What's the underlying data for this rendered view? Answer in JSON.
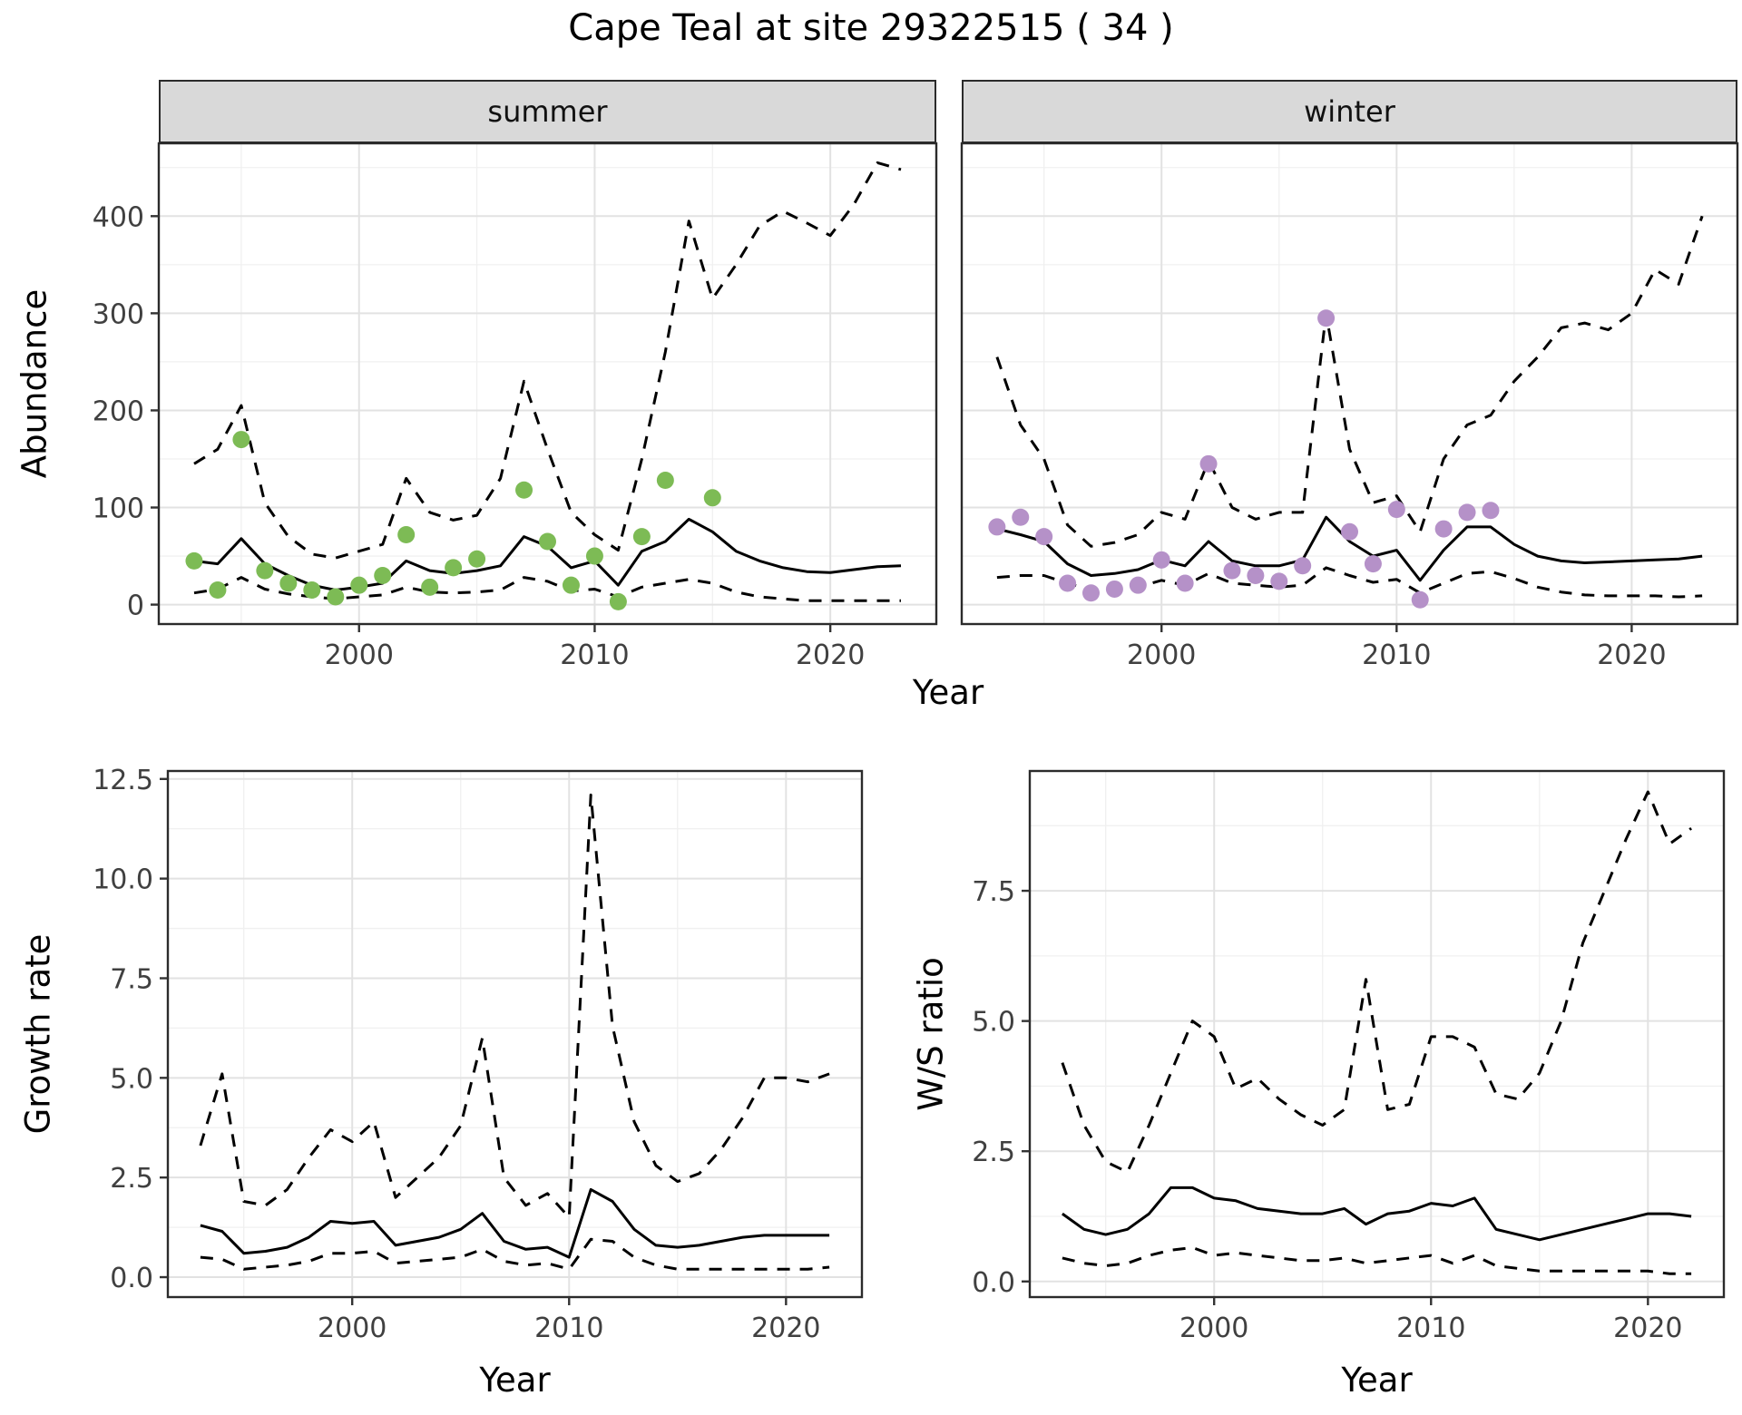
{
  "title": "Cape Teal at site 29322515 ( 34 )",
  "facets": {
    "summer": "summer",
    "winter": "winter"
  },
  "axes": {
    "year": "Year",
    "abundance": "Abundance",
    "growth_rate": "Growth rate",
    "ws_ratio": "W/S ratio"
  },
  "colors": {
    "summer_points": "#7dbb55",
    "winter_points": "#b591c8",
    "line": "#000000",
    "strip_bg": "#d9d9d9",
    "grid_major": "#e2e2e2",
    "grid_minor": "#f0f0f0",
    "panel_border": "#2b2b2b",
    "tick_mark": "#333333",
    "tick_label": "#404040"
  },
  "chart_data": [
    {
      "id": "abundance-summer",
      "type": "line",
      "facet_label": "summer",
      "xlabel": "Year",
      "ylabel": "Abundance",
      "xlim": [
        1991.5,
        2024.5
      ],
      "ylim": [
        -20,
        475
      ],
      "xticks": [
        2000,
        2010,
        2020
      ],
      "xtick_labels": [
        "2000",
        "2010",
        "2020"
      ],
      "yticks": [
        0,
        100,
        200,
        300,
        400
      ],
      "ytick_labels": [
        "0",
        "100",
        "200",
        "300",
        "400"
      ],
      "grid": true,
      "x": [
        1993,
        1994,
        1995,
        1996,
        1997,
        1998,
        1999,
        2000,
        2001,
        2002,
        2003,
        2004,
        2005,
        2006,
        2007,
        2008,
        2009,
        2010,
        2011,
        2012,
        2013,
        2014,
        2015,
        2016,
        2017,
        2018,
        2019,
        2020,
        2021,
        2022,
        2023
      ],
      "series": [
        {
          "name": "predicted-mean",
          "style": "solid",
          "values": [
            45,
            42,
            68,
            42,
            30,
            20,
            15,
            18,
            22,
            45,
            35,
            32,
            35,
            40,
            70,
            60,
            38,
            45,
            20,
            55,
            65,
            88,
            75,
            55,
            45,
            38,
            34,
            33,
            36,
            39,
            40
          ]
        },
        {
          "name": "upper-ci",
          "style": "dashed",
          "values": [
            145,
            160,
            205,
            105,
            70,
            52,
            48,
            55,
            62,
            130,
            95,
            87,
            92,
            130,
            230,
            160,
            95,
            72,
            56,
            150,
            260,
            395,
            315,
            350,
            390,
            405,
            393,
            380,
            412,
            455,
            448
          ]
        },
        {
          "name": "lower-ci",
          "style": "dashed",
          "values": [
            12,
            16,
            28,
            16,
            11,
            8,
            6,
            8,
            10,
            18,
            13,
            12,
            13,
            15,
            28,
            24,
            14,
            16,
            8,
            18,
            22,
            26,
            22,
            13,
            8,
            6,
            4,
            4,
            4,
            4,
            4
          ]
        },
        {
          "name": "observed-counts",
          "style": "points",
          "color_key": "summer_points",
          "x": [
            1993,
            1994,
            1995,
            1996,
            1997,
            1998,
            1999,
            2000,
            2001,
            2002,
            2003,
            2004,
            2005,
            2007,
            2008,
            2009,
            2010,
            2011,
            2012,
            2013,
            2015
          ],
          "values": [
            45,
            15,
            170,
            35,
            22,
            15,
            8,
            20,
            30,
            72,
            18,
            38,
            47,
            118,
            65,
            20,
            50,
            3,
            70,
            128,
            110
          ]
        }
      ]
    },
    {
      "id": "abundance-winter",
      "type": "line",
      "facet_label": "winter",
      "xlabel": "Year",
      "ylabel": "Abundance",
      "xlim": [
        1991.5,
        2024.5
      ],
      "ylim": [
        -20,
        475
      ],
      "xticks": [
        2000,
        2010,
        2020
      ],
      "xtick_labels": [
        "2000",
        "2010",
        "2020"
      ],
      "yticks": [
        0,
        100,
        200,
        300,
        400
      ],
      "ytick_labels": [
        "0",
        "100",
        "200",
        "300",
        "400"
      ],
      "grid": true,
      "x": [
        1993,
        1994,
        1995,
        1996,
        1997,
        1998,
        1999,
        2000,
        2001,
        2002,
        2003,
        2004,
        2005,
        2006,
        2007,
        2008,
        2009,
        2010,
        2011,
        2012,
        2013,
        2014,
        2015,
        2016,
        2017,
        2018,
        2019,
        2020,
        2021,
        2022,
        2023
      ],
      "series": [
        {
          "name": "predicted-mean",
          "style": "solid",
          "values": [
            78,
            72,
            65,
            42,
            30,
            32,
            36,
            46,
            40,
            65,
            45,
            40,
            40,
            46,
            90,
            65,
            50,
            56,
            25,
            56,
            80,
            80,
            62,
            50,
            45,
            43,
            44,
            45,
            46,
            47,
            50
          ]
        },
        {
          "name": "upper-ci",
          "style": "dashed",
          "values": [
            255,
            185,
            150,
            82,
            60,
            64,
            72,
            95,
            88,
            148,
            100,
            88,
            95,
            95,
            300,
            160,
            105,
            112,
            75,
            150,
            185,
            195,
            230,
            255,
            285,
            290,
            283,
            300,
            345,
            330,
            400
          ]
        },
        {
          "name": "lower-ci",
          "style": "dashed",
          "values": [
            28,
            30,
            30,
            22,
            15,
            16,
            18,
            25,
            20,
            32,
            22,
            20,
            18,
            20,
            38,
            30,
            23,
            26,
            12,
            22,
            32,
            34,
            27,
            18,
            13,
            10,
            9,
            9,
            9,
            8,
            9
          ]
        },
        {
          "name": "observed-counts",
          "style": "points",
          "color_key": "winter_points",
          "x": [
            1993,
            1994,
            1995,
            1996,
            1997,
            1998,
            1999,
            2000,
            2001,
            2002,
            2003,
            2004,
            2005,
            2006,
            2007,
            2008,
            2009,
            2010,
            2011,
            2012,
            2013,
            2014
          ],
          "values": [
            80,
            90,
            70,
            22,
            12,
            16,
            20,
            46,
            22,
            145,
            35,
            30,
            24,
            40,
            295,
            75,
            42,
            98,
            5,
            78,
            95,
            97
          ]
        }
      ]
    },
    {
      "id": "growth-rate",
      "type": "line",
      "facet_label": "",
      "xlabel": "Year",
      "ylabel": "Growth rate",
      "xlim": [
        1991.5,
        2023.5
      ],
      "ylim": [
        -0.5,
        12.7
      ],
      "xticks": [
        2000,
        2010,
        2020
      ],
      "xtick_labels": [
        "2000",
        "2010",
        "2020"
      ],
      "yticks": [
        0,
        2.5,
        5,
        7.5,
        10,
        12.5
      ],
      "ytick_labels": [
        "0.0",
        "2.5",
        "5.0",
        "7.5",
        "10.0",
        "12.5"
      ],
      "grid": true,
      "x": [
        1993,
        1994,
        1995,
        1996,
        1997,
        1998,
        1999,
        2000,
        2001,
        2002,
        2003,
        2004,
        2005,
        2006,
        2007,
        2008,
        2009,
        2010,
        2011,
        2012,
        2013,
        2014,
        2015,
        2016,
        2017,
        2018,
        2019,
        2020,
        2021,
        2022
      ],
      "series": [
        {
          "name": "predicted-mean",
          "style": "solid",
          "values": [
            1.3,
            1.15,
            0.6,
            0.65,
            0.75,
            1.0,
            1.4,
            1.35,
            1.4,
            0.8,
            0.9,
            1.0,
            1.2,
            1.6,
            0.9,
            0.7,
            0.75,
            0.5,
            2.2,
            1.9,
            1.2,
            0.8,
            0.75,
            0.8,
            0.9,
            1.0,
            1.05,
            1.05,
            1.05,
            1.05
          ]
        },
        {
          "name": "upper-ci",
          "style": "dashed",
          "values": [
            3.3,
            5.1,
            1.9,
            1.8,
            2.2,
            3.0,
            3.7,
            3.4,
            3.9,
            2.0,
            2.5,
            3.0,
            3.8,
            6.0,
            2.5,
            1.8,
            2.1,
            1.5,
            12.1,
            6.3,
            3.9,
            2.8,
            2.4,
            2.6,
            3.2,
            4.0,
            5.0,
            5.0,
            4.9,
            5.1
          ]
        },
        {
          "name": "lower-ci",
          "style": "dashed",
          "values": [
            0.5,
            0.45,
            0.2,
            0.25,
            0.3,
            0.4,
            0.6,
            0.6,
            0.65,
            0.35,
            0.4,
            0.45,
            0.5,
            0.7,
            0.4,
            0.3,
            0.35,
            0.2,
            0.95,
            0.9,
            0.5,
            0.3,
            0.2,
            0.2,
            0.2,
            0.2,
            0.2,
            0.2,
            0.2,
            0.25
          ]
        }
      ]
    },
    {
      "id": "ws-ratio",
      "type": "line",
      "facet_label": "",
      "xlabel": "Year",
      "ylabel": "W/S ratio",
      "xlim": [
        1991.5,
        2023.5
      ],
      "ylim": [
        -0.3,
        9.8
      ],
      "xticks": [
        2000,
        2010,
        2020
      ],
      "xtick_labels": [
        "2000",
        "2010",
        "2020"
      ],
      "yticks": [
        0,
        2.5,
        5,
        7.5
      ],
      "ytick_labels": [
        "0.0",
        "2.5",
        "5.0",
        "7.5"
      ],
      "grid": true,
      "x": [
        1993,
        1994,
        1995,
        1996,
        1997,
        1998,
        1999,
        2000,
        2001,
        2002,
        2003,
        2004,
        2005,
        2006,
        2007,
        2008,
        2009,
        2010,
        2011,
        2012,
        2013,
        2014,
        2015,
        2016,
        2017,
        2018,
        2019,
        2020,
        2021,
        2022
      ],
      "series": [
        {
          "name": "predicted-mean",
          "style": "solid",
          "values": [
            1.3,
            1.0,
            0.9,
            1.0,
            1.3,
            1.8,
            1.8,
            1.6,
            1.55,
            1.4,
            1.35,
            1.3,
            1.3,
            1.4,
            1.1,
            1.3,
            1.35,
            1.5,
            1.45,
            1.6,
            1.0,
            0.9,
            0.8,
            0.9,
            1.0,
            1.1,
            1.2,
            1.3,
            1.3,
            1.25
          ]
        },
        {
          "name": "upper-ci",
          "style": "dashed",
          "values": [
            4.2,
            3.0,
            2.3,
            2.1,
            3.0,
            4.0,
            5.0,
            4.7,
            3.7,
            3.9,
            3.5,
            3.2,
            3.0,
            3.3,
            5.8,
            3.3,
            3.4,
            4.7,
            4.7,
            4.5,
            3.6,
            3.5,
            4.0,
            5.0,
            6.5,
            7.5,
            8.5,
            9.4,
            8.4,
            8.7
          ]
        },
        {
          "name": "lower-ci",
          "style": "dashed",
          "values": [
            0.45,
            0.35,
            0.3,
            0.35,
            0.5,
            0.6,
            0.65,
            0.5,
            0.55,
            0.5,
            0.45,
            0.4,
            0.4,
            0.45,
            0.35,
            0.4,
            0.45,
            0.5,
            0.35,
            0.5,
            0.3,
            0.25,
            0.2,
            0.2,
            0.2,
            0.2,
            0.2,
            0.2,
            0.15,
            0.15
          ]
        }
      ]
    }
  ]
}
